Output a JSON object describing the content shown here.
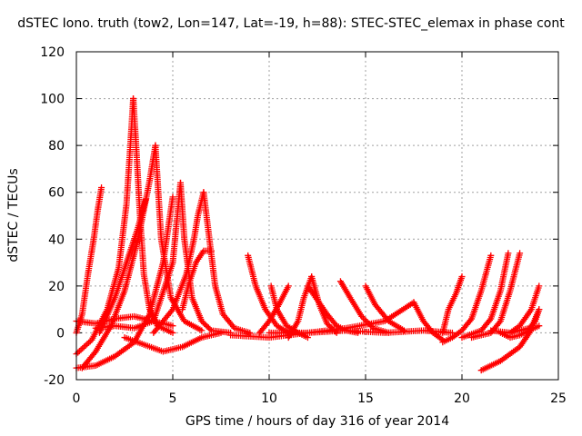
{
  "chart_data": {
    "type": "scatter",
    "title": "dSTEC Iono. truth (tow2, Lon=147, Lat=-19, h=88): STEC-STEC_elemax in phase cont",
    "xlabel": "GPS time / hours of day 316 of year 2014",
    "ylabel": "dSTEC  / TECUs",
    "xlim": [
      0,
      25
    ],
    "ylim": [
      -20,
      120
    ],
    "xticks": [
      "0",
      "5",
      "10",
      "15",
      "20",
      "25"
    ],
    "yticks": [
      "-20",
      "0",
      "20",
      "40",
      "60",
      "80",
      "100",
      "120"
    ],
    "grid": true,
    "marker": "+",
    "marker_color": "#ff0000",
    "series": [
      {
        "x": [
          0.0,
          0.3,
          0.6,
          0.9,
          1.1,
          1.3
        ],
        "y": [
          0,
          8,
          25,
          40,
          52,
          62
        ]
      },
      {
        "x": [
          0.0,
          0.8,
          1.6,
          2.2,
          2.6,
          2.8,
          2.95
        ],
        "y": [
          -9,
          -3,
          10,
          28,
          55,
          80,
          100
        ]
      },
      {
        "x": [
          2.95,
          3.1,
          3.3,
          3.5,
          3.8,
          4.2,
          5.0
        ],
        "y": [
          100,
          80,
          50,
          25,
          10,
          3,
          0
        ]
      },
      {
        "x": [
          0.3,
          1.0,
          1.8,
          2.5,
          3.2,
          3.8,
          4.1
        ],
        "y": [
          -15,
          -8,
          3,
          18,
          40,
          65,
          80
        ]
      },
      {
        "x": [
          4.1,
          4.4,
          4.9,
          5.6,
          6.5
        ],
        "y": [
          80,
          40,
          15,
          5,
          1
        ]
      },
      {
        "x": [
          0.0,
          1.0,
          2.0,
          3.0,
          3.8,
          4.5,
          5.0
        ],
        "y": [
          -15,
          -14,
          -10,
          -4,
          8,
          30,
          58
        ]
      },
      {
        "x": [
          1.2,
          2.0,
          2.6,
          3.2,
          3.6
        ],
        "y": [
          0,
          15,
          30,
          45,
          57
        ]
      },
      {
        "x": [
          1.0,
          2.0,
          3.0,
          4.0,
          5.0,
          5.4
        ],
        "y": [
          2,
          3,
          2,
          5,
          30,
          64
        ]
      },
      {
        "x": [
          5.4,
          5.6,
          6.0,
          6.5,
          7.0,
          8.0
        ],
        "y": [
          64,
          40,
          15,
          5,
          1,
          0
        ]
      },
      {
        "x": [
          4.0,
          5.0,
          5.7,
          6.1,
          6.3,
          6.6
        ],
        "y": [
          0,
          10,
          25,
          40,
          50,
          60
        ]
      },
      {
        "x": [
          6.6,
          6.9,
          7.2,
          7.6,
          8.2,
          9.0
        ],
        "y": [
          60,
          40,
          20,
          8,
          2,
          0
        ]
      },
      {
        "x": [
          5.5,
          5.8,
          6.2,
          6.6,
          7.0
        ],
        "y": [
          10,
          20,
          30,
          35,
          35
        ]
      },
      {
        "x": [
          0.0,
          1.0,
          2.0,
          3.0,
          4.0,
          5.0
        ],
        "y": [
          5,
          4,
          6,
          7,
          5,
          3
        ]
      },
      {
        "x": [
          2.5,
          3.5,
          4.5,
          5.5,
          6.5,
          7.5
        ],
        "y": [
          -2,
          -5,
          -8,
          -6,
          -2,
          0
        ]
      },
      {
        "x": [
          8.9,
          9.3,
          9.8,
          10.4,
          11.0
        ],
        "y": [
          33,
          20,
          10,
          3,
          0
        ]
      },
      {
        "x": [
          9.5,
          10.0,
          10.5,
          11.0
        ],
        "y": [
          0,
          5,
          12,
          20
        ]
      },
      {
        "x": [
          10.1,
          10.4,
          10.9,
          11.5,
          12.0
        ],
        "y": [
          20,
          10,
          3,
          0,
          -2
        ]
      },
      {
        "x": [
          11.0,
          11.5,
          11.8,
          12.2
        ],
        "y": [
          -2,
          5,
          15,
          24
        ]
      },
      {
        "x": [
          12.2,
          12.6,
          13.0,
          13.5
        ],
        "y": [
          24,
          12,
          4,
          0
        ]
      },
      {
        "x": [
          12.0,
          13.0,
          13.5,
          14.0,
          14.6
        ],
        "y": [
          20,
          8,
          3,
          1,
          0
        ]
      },
      {
        "x": [
          13.7,
          14.2,
          14.8,
          15.4,
          16.2
        ],
        "y": [
          22,
          15,
          7,
          2,
          0
        ]
      },
      {
        "x": [
          15.0,
          15.5,
          16.2,
          17.0
        ],
        "y": [
          20,
          12,
          5,
          1
        ]
      },
      {
        "x": [
          8.0,
          10.0,
          12.0,
          14.0,
          16.0,
          17.5
        ],
        "y": [
          -1,
          -2,
          0,
          2,
          5,
          13
        ]
      },
      {
        "x": [
          17.5,
          18.0,
          18.5,
          19.0
        ],
        "y": [
          13,
          5,
          0,
          -3
        ]
      },
      {
        "x": [
          10.0,
          12.0,
          14.0,
          16.0,
          18.0,
          19.5
        ],
        "y": [
          0,
          0,
          1,
          0,
          1,
          0
        ]
      },
      {
        "x": [
          19.0,
          19.3,
          19.7,
          20.0
        ],
        "y": [
          0,
          10,
          17,
          24
        ]
      },
      {
        "x": [
          19.0,
          19.5,
          20.0,
          20.5,
          21.0,
          21.5
        ],
        "y": [
          -4,
          -2,
          1,
          6,
          18,
          33
        ]
      },
      {
        "x": [
          20.0,
          21.0,
          21.5,
          22.0,
          22.4
        ],
        "y": [
          -2,
          1,
          6,
          18,
          34
        ]
      },
      {
        "x": [
          20.5,
          21.5,
          22.0,
          22.5,
          23.0
        ],
        "y": [
          -2,
          0,
          5,
          18,
          34
        ]
      },
      {
        "x": [
          21.0,
          22.0,
          23.0,
          23.5,
          24.0
        ],
        "y": [
          -16,
          -12,
          -6,
          0,
          10
        ]
      },
      {
        "x": [
          21.5,
          22.5,
          23.0,
          23.6,
          24.0
        ],
        "y": [
          1,
          0,
          3,
          10,
          20
        ]
      },
      {
        "x": [
          22.0,
          22.5,
          23.0,
          23.5,
          24.0
        ],
        "y": [
          0,
          -2,
          -1,
          1,
          3
        ]
      },
      {
        "x": [
          22.5,
          23.0,
          23.5,
          23.8,
          24.0
        ],
        "y": [
          0,
          1,
          2,
          5,
          10
        ]
      }
    ]
  }
}
